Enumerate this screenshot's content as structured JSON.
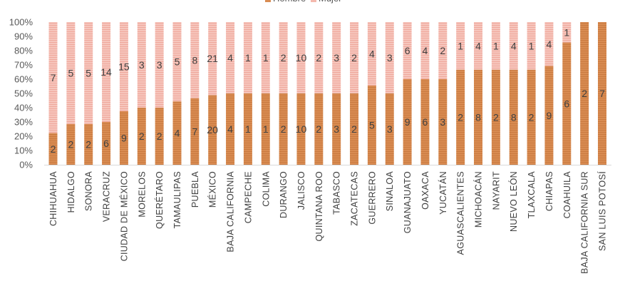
{
  "chart_data": {
    "type": "bar",
    "stacked": "percent",
    "categories": [
      "CHIHUAHUA",
      "HIDALGO",
      "SONORA",
      "VERACRUZ",
      "CIUDAD DE MÉXICO",
      "MORELOS",
      "QUERÉTARO",
      "TAMAULIPAS",
      "PUEBLA",
      "MÉXICO",
      "BAJA CALIFORNIA",
      "CAMPECHE",
      "COLIMA",
      "DURANGO",
      "JALISCO",
      "QUINTANA ROO",
      "TABASCO",
      "ZACATECAS",
      "GUERRERO",
      "SINALOA",
      "GUANAJUATO",
      "OAXACA",
      "YUCATÁN",
      "AGUASCALIENTES",
      "MICHOACÁN",
      "NAYARIT",
      "NUEVO LEÓN",
      "TLAXCALA",
      "CHIAPAS",
      "COAHUILA",
      "BAJA CALIFORNIA SUR",
      "SAN LUIS POTOSÍ"
    ],
    "series": [
      {
        "name": "Hombre",
        "color": "#D98C52",
        "values": [
          2,
          2,
          2,
          6,
          9,
          2,
          2,
          4,
          7,
          20,
          4,
          1,
          1,
          2,
          10,
          2,
          3,
          2,
          5,
          3,
          9,
          6,
          3,
          2,
          8,
          2,
          8,
          2,
          9,
          6,
          2,
          7
        ]
      },
      {
        "name": "Mujer",
        "color": "#F4B9AE",
        "values": [
          7,
          5,
          5,
          14,
          15,
          3,
          3,
          5,
          8,
          21,
          4,
          1,
          1,
          2,
          10,
          2,
          3,
          2,
          4,
          3,
          6,
          4,
          2,
          1,
          4,
          1,
          4,
          1,
          4,
          1,
          0,
          0
        ]
      }
    ],
    "y_tick_labels": [
      "0%",
      "10%",
      "20%",
      "30%",
      "40%",
      "50%",
      "60%",
      "70%",
      "80%",
      "90%",
      "100%"
    ],
    "ylim": [
      0,
      100
    ],
    "data_labels": true,
    "legend": "top-center",
    "grid": false
  }
}
